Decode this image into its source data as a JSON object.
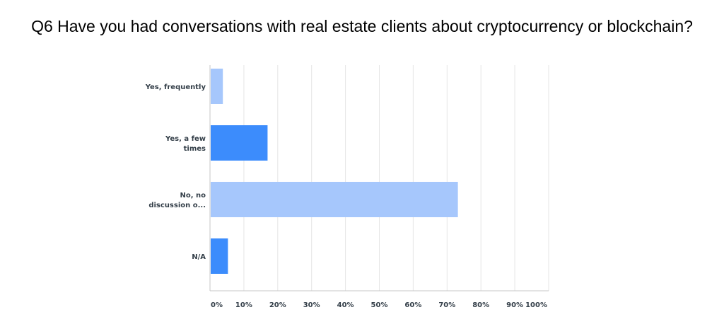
{
  "chart_data": {
    "type": "bar",
    "orientation": "horizontal",
    "title": "Q6 Have you had conversations with real estate clients about cryptocurrency or blockchain?",
    "categories": [
      [
        "Yes, frequently"
      ],
      [
        "Yes, a few",
        "times"
      ],
      [
        "No, no",
        "discussion o..."
      ],
      [
        "N/A"
      ]
    ],
    "values": [
      3.8,
      17,
      73.2,
      5.3
    ],
    "bar_colors": [
      "#a6c7fc",
      "#3c8cfc",
      "#a6c7fc",
      "#3c8cfc"
    ],
    "xticks": [
      "0%",
      "10%",
      "20%",
      "30%",
      "40%",
      "50%",
      "60%",
      "70%",
      "80%",
      "90%",
      "100%"
    ],
    "xlim": [
      0,
      100
    ],
    "grid": true,
    "xlabel": "",
    "ylabel": ""
  }
}
